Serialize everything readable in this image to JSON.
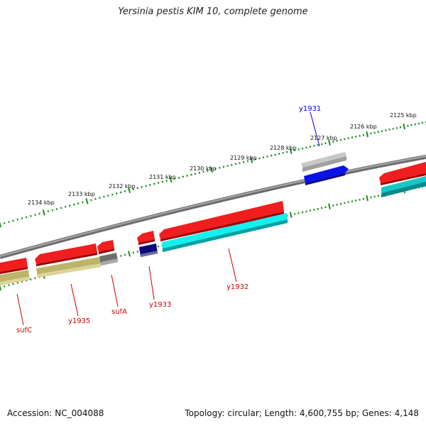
{
  "title": "Yersinia pestis KIM 10, complete genome",
  "footer": {
    "accession": "Accession: NC_004088",
    "summary": "Topology: circular; Length: 4,600,755 bp; Genes: 4,148"
  },
  "colors": {
    "backbone": "#808080",
    "tick": "#1a8a1a",
    "label_red": "#cc0000",
    "label_blue": "#0000cc"
  },
  "scale_labels": [
    "2125 kbp",
    "2126 kbp",
    "2127 kbp",
    "2128 kbp",
    "2129 kbp",
    "2130 kbp",
    "2131 kbp",
    "2132 kbp",
    "2133 kbp",
    "2134 kbp"
  ],
  "gene_labels": [
    {
      "id": "y1931",
      "text": "y1931",
      "color": "#0000cc"
    },
    {
      "id": "y1932",
      "text": "y1932",
      "color": "#cc0000"
    },
    {
      "id": "y1933",
      "text": "y1933",
      "color": "#cc0000"
    },
    {
      "id": "sufA",
      "text": "sufA",
      "color": "#cc0000"
    },
    {
      "id": "y1935",
      "text": "y1935",
      "color": "#cc0000"
    },
    {
      "id": "sufC",
      "text": "sufC",
      "color": "#cc0000"
    }
  ],
  "features": [
    {
      "id": "y1931",
      "lane": "outer-forward",
      "color": "#b4b4b4"
    },
    {
      "id": "y1931",
      "lane": "inner-forward",
      "color": "#0a14e6"
    },
    {
      "id": "y1932",
      "lane": "outer-reverse",
      "color": "#e60000"
    },
    {
      "id": "y1932",
      "lane": "inner-plain",
      "color": "#00e6e6"
    },
    {
      "id": "y1933",
      "lane": "outer-reverse",
      "color": "#e60000"
    },
    {
      "id": "y1933",
      "lane": "inner-plain",
      "color": "#0a0a7a"
    },
    {
      "id": "sufA",
      "lane": "outer-reverse",
      "color": "#e60000"
    },
    {
      "id": "sufA",
      "lane": "inner-plain",
      "color": "#6e6e6e"
    },
    {
      "id": "y1935",
      "lane": "outer-reverse",
      "color": "#e60000"
    },
    {
      "id": "y1935",
      "lane": "inner-plain",
      "color": "#bcb46a"
    },
    {
      "id": "sufC",
      "lane": "outer-reverse",
      "color": "#e60000"
    },
    {
      "id": "sufC",
      "lane": "inner-plain",
      "color": "#bcb46a"
    },
    {
      "id": "right-gene",
      "lane": "outer-reverse",
      "color": "#e60000"
    },
    {
      "id": "right-gene",
      "lane": "inner-plain",
      "color": "#16c8c8"
    }
  ]
}
